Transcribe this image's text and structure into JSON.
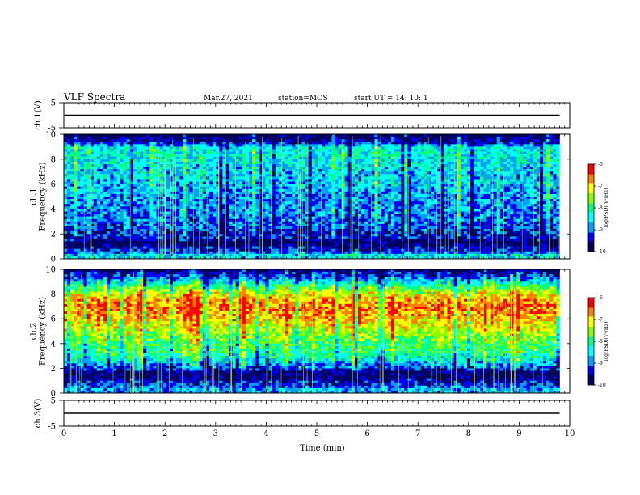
{
  "header": {
    "title": "VLF Spectra",
    "date": "Mar.27, 2021",
    "station": "station=MOS",
    "start_ut": "start  UT =   14: 10: 1"
  },
  "colors": {
    "background": "#ffffff",
    "colormap": [
      "#000066",
      "#0000ff",
      "#00a0ff",
      "#00ffff",
      "#00ff80",
      "#80ff00",
      "#ffff00",
      "#ff8000",
      "#ff0000",
      "#ffffff"
    ]
  },
  "chart_data": [
    {
      "type": "line",
      "name": "ch1-voltage",
      "ylabel": "ch.1(V)",
      "yticks": [
        "5",
        "-5"
      ],
      "ylim": [
        -5,
        5
      ],
      "xlim": [
        0,
        10
      ],
      "x": [
        0,
        9.8
      ],
      "y": [
        0,
        0
      ]
    },
    {
      "type": "heatmap",
      "name": "ch1-spectrogram",
      "ylabel": "ch.1\nFrequency (kHz)",
      "xlim": [
        0,
        10
      ],
      "ylim": [
        0,
        10
      ],
      "data_xlim": [
        0,
        9.8
      ],
      "yticks": [
        "0",
        "2",
        "4",
        "6",
        "8",
        "10"
      ],
      "colorbar": {
        "label": "log(PSD)(V²/Hz)",
        "range": [
          -10,
          -6
        ],
        "ticks": [
          "-6",
          "-7",
          "-8",
          "-9",
          "-10"
        ]
      },
      "band_profile": {
        "freq_khz": [
          0.3,
          0.6,
          0.9,
          1.3,
          1.6,
          2.0,
          2.5,
          3.0,
          4.0,
          5.0,
          6.0,
          7.0,
          8.0,
          8.5,
          9.0,
          9.3,
          9.6,
          9.9
        ],
        "log_psd": [
          -8.6,
          -9.3,
          -9.5,
          -10.0,
          -9.4,
          -9.5,
          -9.2,
          -9.1,
          -9.0,
          -8.9,
          -8.7,
          -8.7,
          -8.5,
          -8.4,
          -8.5,
          -9.4,
          -9.8,
          -10.0
        ]
      }
    },
    {
      "type": "heatmap",
      "name": "ch2-spectrogram",
      "ylabel": "ch.2\nFrequency (kHz)",
      "xlim": [
        0,
        10
      ],
      "ylim": [
        0,
        10
      ],
      "data_xlim": [
        0,
        9.8
      ],
      "yticks": [
        "0",
        "2",
        "4",
        "6",
        "8",
        "10"
      ],
      "colorbar": {
        "label": "log(PSD)(V²/Hz)",
        "range": [
          -10,
          -6
        ],
        "ticks": [
          "-6",
          "-7",
          "-8",
          "-9",
          "-10"
        ]
      },
      "band_profile": {
        "freq_khz": [
          0.3,
          0.6,
          1.0,
          1.4,
          1.8,
          2.2,
          3.0,
          4.0,
          5.0,
          6.0,
          6.5,
          7.0,
          7.5,
          8.0,
          8.5,
          9.0,
          9.5,
          9.9
        ],
        "log_psd": [
          -8.8,
          -9.2,
          -9.5,
          -10.0,
          -9.6,
          -9.0,
          -8.2,
          -7.9,
          -7.4,
          -6.9,
          -6.7,
          -6.6,
          -6.8,
          -7.2,
          -7.8,
          -8.6,
          -9.3,
          -9.8
        ]
      }
    },
    {
      "type": "line",
      "name": "ch3-voltage",
      "ylabel": "ch.3(V)",
      "yticks": [
        "5",
        "-5"
      ],
      "ylim": [
        -5,
        5
      ],
      "xlim": [
        0,
        10
      ],
      "x": [
        0,
        9.8
      ],
      "y": [
        0,
        0
      ]
    }
  ],
  "x_axis": {
    "label": "Time  (min)",
    "ticks": [
      "0",
      "1",
      "2",
      "3",
      "4",
      "5",
      "6",
      "7",
      "8",
      "9",
      "10"
    ]
  }
}
